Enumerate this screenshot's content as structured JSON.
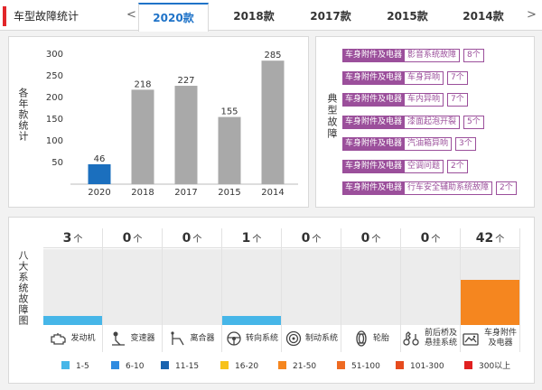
{
  "header": {
    "title": "车型故障统计",
    "prev_arrow": "<",
    "next_arrow": ">",
    "tabs": [
      {
        "label": "2020款",
        "active": true
      },
      {
        "label": "2018款",
        "active": false
      },
      {
        "label": "2017款",
        "active": false
      },
      {
        "label": "2015款",
        "active": false
      },
      {
        "label": "2014款",
        "active": false
      }
    ]
  },
  "yearly_panel": {
    "label": "各年款统计"
  },
  "chart_data": {
    "type": "bar",
    "categories": [
      "2020",
      "2018",
      "2017",
      "2015",
      "2014"
    ],
    "values": [
      46,
      218,
      227,
      155,
      285
    ],
    "ylim": [
      0,
      300
    ],
    "yticks": [
      50,
      100,
      150,
      200,
      250,
      300
    ],
    "highlight_color": "#1b6fbe",
    "bar_color": "#a9a9a9",
    "grid": false
  },
  "typical_panel": {
    "label": "典型故障",
    "items": [
      {
        "category": "车身附件及电器",
        "name": "影音系统故障",
        "count": "8个"
      },
      {
        "category": "车身附件及电器",
        "name": "车身异响",
        "count": "7个"
      },
      {
        "category": "车身附件及电器",
        "name": "车内异响",
        "count": "7个"
      },
      {
        "category": "车身附件及电器",
        "name": "漆面起泡开裂",
        "count": "5个"
      },
      {
        "category": "车身附件及电器",
        "name": "汽油箱异响",
        "count": "3个"
      },
      {
        "category": "车身附件及电器",
        "name": "空调问题",
        "count": "2个"
      },
      {
        "category": "车身附件及电器",
        "name": "行车安全辅助系统故障",
        "count": "2个"
      }
    ]
  },
  "systems_panel": {
    "label": "八大系统故障图",
    "unit": "个",
    "systems": [
      {
        "name": "发动机",
        "count": "3",
        "icon": "engine-icon",
        "fill_color": "#46b6e8",
        "level": 0.12
      },
      {
        "name": "变速器",
        "count": "0",
        "icon": "gearshift-icon",
        "fill_color": "",
        "level": 0
      },
      {
        "name": "离合器",
        "count": "0",
        "icon": "clutch-icon",
        "fill_color": "",
        "level": 0
      },
      {
        "name": "转向系统",
        "count": "1",
        "icon": "steering-wheel-icon",
        "fill_color": "#46b6e8",
        "level": 0.12
      },
      {
        "name": "制动系统",
        "count": "0",
        "icon": "brake-disc-icon",
        "fill_color": "",
        "level": 0
      },
      {
        "name": "轮胎",
        "count": "0",
        "icon": "tire-icon",
        "fill_color": "",
        "level": 0
      },
      {
        "name": "前后桥及悬挂系统",
        "count": "0",
        "icon": "suspension-icon",
        "fill_color": "",
        "level": 0
      },
      {
        "name": "车身附件及电器",
        "count": "42",
        "icon": "car-body-icon",
        "fill_color": "#f5861f",
        "level": 0.6
      }
    ]
  },
  "legend": [
    {
      "label": "1-5",
      "color": "#46b6e8"
    },
    {
      "label": "6-10",
      "color": "#2f8be0"
    },
    {
      "label": "11-15",
      "color": "#1a63b0"
    },
    {
      "label": "16-20",
      "color": "#f7c21c"
    },
    {
      "label": "21-50",
      "color": "#f5861f"
    },
    {
      "label": "51-100",
      "color": "#ee6a22"
    },
    {
      "label": "101-300",
      "color": "#e64b1e"
    },
    {
      "label": "300以上",
      "color": "#e02020"
    }
  ]
}
